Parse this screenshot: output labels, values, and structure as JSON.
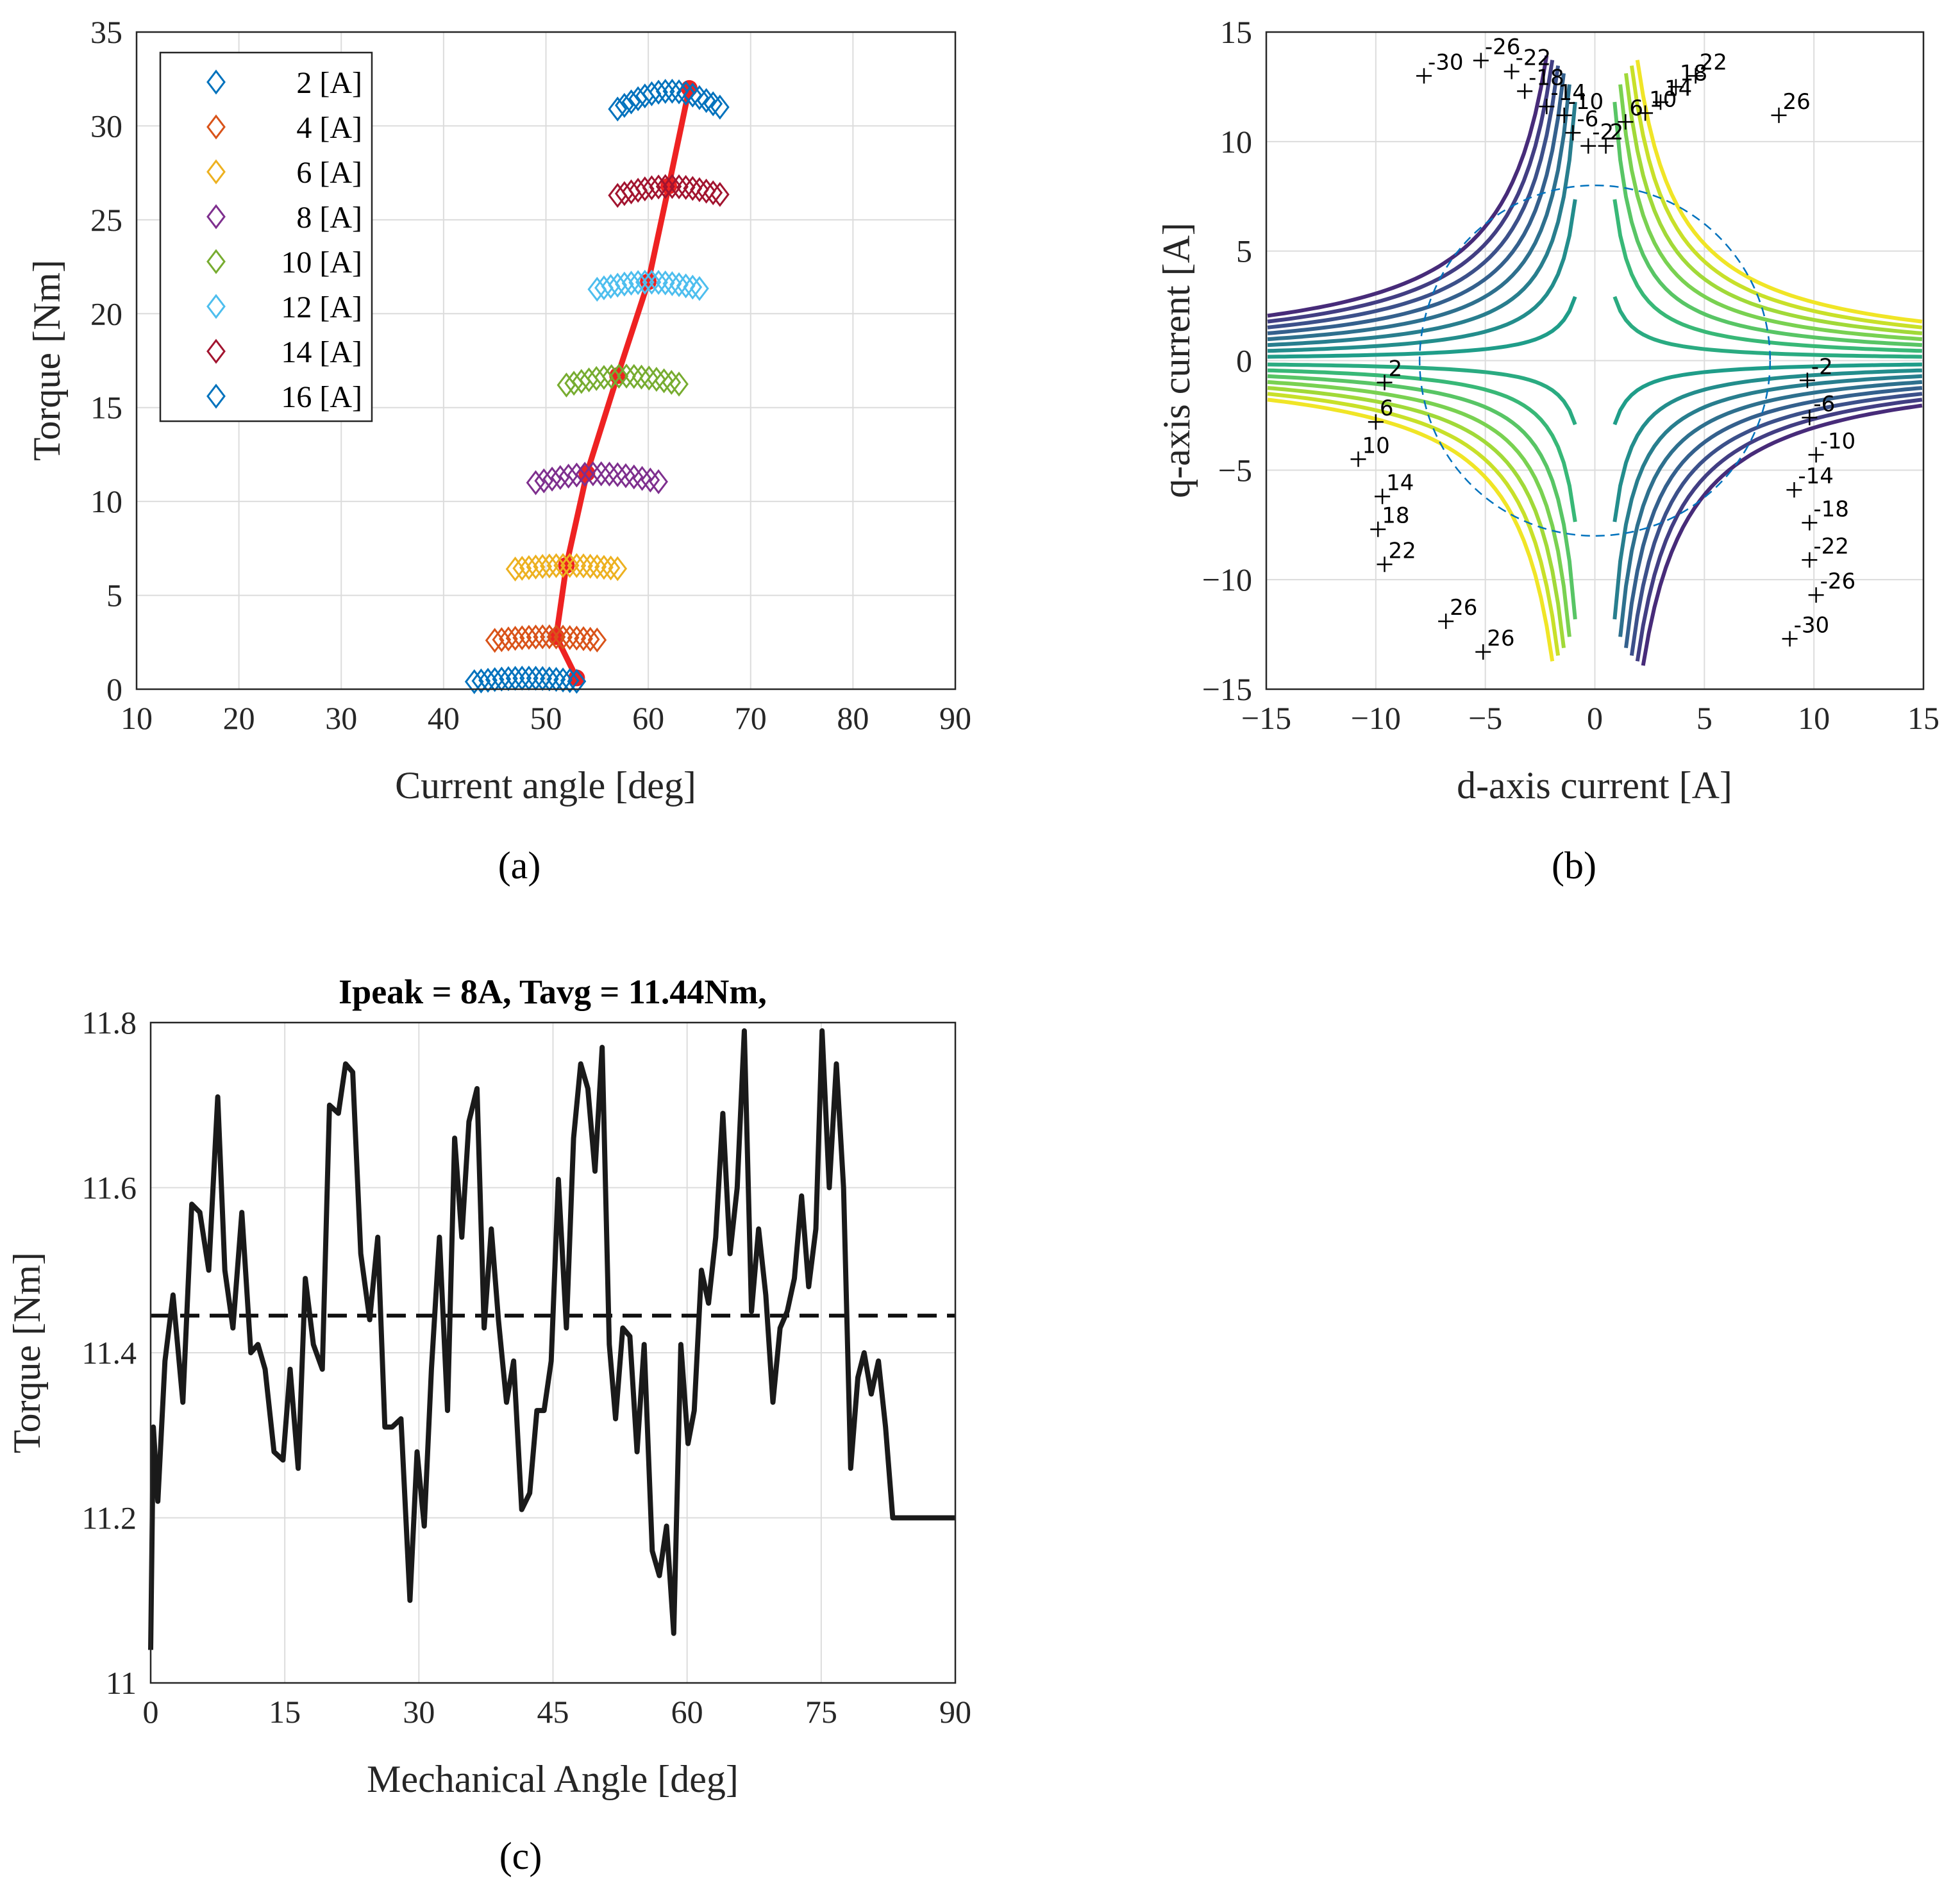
{
  "panels": [
    "(a)",
    "(b)",
    "(c)"
  ],
  "chart_data": [
    {
      "id": "a",
      "type": "scatter",
      "xlabel": "Current angle [deg]",
      "ylabel": "Torque [Nm]",
      "xlim": [
        10,
        90
      ],
      "ylim": [
        0,
        35
      ],
      "xticks": [
        10,
        20,
        30,
        40,
        50,
        60,
        70,
        80,
        90
      ],
      "yticks": [
        0,
        5,
        10,
        15,
        20,
        25,
        30,
        35
      ],
      "grid": true,
      "legend_position": "top-left",
      "marker": "diamond",
      "series": [
        {
          "name": "2 [A]",
          "color": "#0072BD",
          "angle_range": [
            43,
            53
          ],
          "torque_range": [
            0.4,
            0.6
          ]
        },
        {
          "name": "4 [A]",
          "color": "#D95319",
          "angle_range": [
            45,
            55
          ],
          "torque_range": [
            2.6,
            2.8
          ]
        },
        {
          "name": "6 [A]",
          "color": "#EDB120",
          "angle_range": [
            47,
            57
          ],
          "torque_range": [
            6.4,
            6.6
          ]
        },
        {
          "name": "8 [A]",
          "color": "#7E2F8E",
          "angle_range": [
            49,
            61
          ],
          "torque_range": [
            11.0,
            11.5
          ]
        },
        {
          "name": "10 [A]",
          "color": "#77AC30",
          "angle_range": [
            52,
            63
          ],
          "torque_range": [
            16.2,
            16.7
          ]
        },
        {
          "name": "12 [A]",
          "color": "#4DBEEE",
          "angle_range": [
            55,
            65
          ],
          "torque_range": [
            21.3,
            21.7
          ]
        },
        {
          "name": "14 [A]",
          "color": "#A2142F",
          "angle_range": [
            57,
            67
          ],
          "torque_range": [
            26.3,
            26.8
          ]
        },
        {
          "name": "16 [A]",
          "color": "#0072BD",
          "angle_range": [
            57,
            67
          ],
          "torque_range": [
            30.9,
            31.9
          ]
        }
      ],
      "mtpa_line": {
        "color": "#EE2222",
        "x": [
          53,
          51,
          52,
          54,
          57,
          60,
          62,
          64
        ],
        "y": [
          0.6,
          2.8,
          6.6,
          11.5,
          16.7,
          21.7,
          26.8,
          32.0
        ]
      }
    },
    {
      "id": "b",
      "type": "contour",
      "xlabel": "d-axis current [A]",
      "ylabel": "q-axis current [A]",
      "xlim": [
        -15,
        15
      ],
      "ylim": [
        -15,
        15
      ],
      "xticks": [
        -15,
        -10,
        -5,
        0,
        5,
        10,
        15
      ],
      "yticks": [
        -15,
        -10,
        -5,
        0,
        5,
        10,
        15
      ],
      "grid": true,
      "contour_levels": [
        -30,
        -26,
        -22,
        -18,
        -14,
        -10,
        -6,
        -2,
        2,
        6,
        10,
        14,
        18,
        22,
        26
      ],
      "circle_radius": 8,
      "labels_top": [
        {
          "text": "-30",
          "x": -7.8,
          "y": 13.0
        },
        {
          "text": "-26",
          "x": -5.2,
          "y": 13.7
        },
        {
          "text": "-22",
          "x": -3.8,
          "y": 13.2
        },
        {
          "text": "-18",
          "x": -3.2,
          "y": 12.3
        },
        {
          "text": "-14",
          "x": -2.2,
          "y": 11.6
        },
        {
          "text": "-10",
          "x": -1.4,
          "y": 11.2
        },
        {
          "text": "-6",
          "x": -1.0,
          "y": 10.4
        },
        {
          "text": "-2",
          "x": -0.3,
          "y": 9.8
        },
        {
          "text": "2",
          "x": 0.5,
          "y": 9.8
        },
        {
          "text": "6",
          "x": 1.4,
          "y": 10.9
        },
        {
          "text": "10",
          "x": 2.3,
          "y": 11.3
        },
        {
          "text": "14",
          "x": 3.0,
          "y": 11.8
        },
        {
          "text": "18",
          "x": 3.7,
          "y": 12.5
        },
        {
          "text": "22",
          "x": 4.6,
          "y": 13.0
        },
        {
          "text": "26",
          "x": 8.4,
          "y": 11.2
        }
      ],
      "labels_left": [
        {
          "text": "2",
          "x": -9.6,
          "y": -1.0
        },
        {
          "text": "6",
          "x": -10.0,
          "y": -2.8
        },
        {
          "text": "10",
          "x": -10.8,
          "y": -4.5
        },
        {
          "text": "14",
          "x": -9.7,
          "y": -6.2
        },
        {
          "text": "18",
          "x": -9.9,
          "y": -7.7
        },
        {
          "text": "22",
          "x": -9.6,
          "y": -9.3
        },
        {
          "text": "26",
          "x": -6.8,
          "y": -11.9
        },
        {
          "text": "26",
          "x": -5.1,
          "y": -13.3
        }
      ],
      "labels_right": [
        {
          "text": "-2",
          "x": 9.7,
          "y": -0.9
        },
        {
          "text": "-6",
          "x": 9.8,
          "y": -2.6
        },
        {
          "text": "-10",
          "x": 10.1,
          "y": -4.3
        },
        {
          "text": "-14",
          "x": 9.1,
          "y": -5.9
        },
        {
          "text": "-18",
          "x": 9.8,
          "y": -7.4
        },
        {
          "text": "-22",
          "x": 9.8,
          "y": -9.1
        },
        {
          "text": "-26",
          "x": 10.1,
          "y": -10.7
        },
        {
          "text": "-30",
          "x": 8.9,
          "y": -12.7
        }
      ]
    },
    {
      "id": "c",
      "type": "line",
      "title": "Ipeak = 8A,  Tavg = 11.44Nm,",
      "xlabel": "Mechanical Angle [deg]",
      "ylabel": "Torque [Nm]",
      "xlim": [
        0,
        90
      ],
      "ylim": [
        11.0,
        11.8
      ],
      "xticks": [
        0,
        15,
        30,
        45,
        60,
        75,
        90
      ],
      "yticks": [
        11.0,
        11.2,
        11.4,
        11.6,
        11.8
      ],
      "ytick_labels": [
        "11",
        "11.2",
        "11.4",
        "11.6",
        "11.8"
      ],
      "grid": true,
      "average": 11.445,
      "x": [
        0,
        0.3,
        0.8,
        1.6,
        2.5,
        3.6,
        4.6,
        5.5,
        6.5,
        7.5,
        8.3,
        9.2,
        10.2,
        11.2,
        12.0,
        12.8,
        13.8,
        14.8,
        15.6,
        16.5,
        17.3,
        18.2,
        19.2,
        20.0,
        21.0,
        21.8,
        22.6,
        23.5,
        24.5,
        25.4,
        26.2,
        27.0,
        28.0,
        29.0,
        29.8,
        30.6,
        31.4,
        32.3,
        33.2,
        34.0,
        34.8,
        35.6,
        36.5,
        37.3,
        38.1,
        38.9,
        39.8,
        40.6,
        41.5,
        42.4,
        43.2,
        44.0,
        44.8,
        45.6,
        46.5,
        47.3,
        48.1,
        48.9,
        49.7,
        50.5,
        51.3,
        52.0,
        52.8,
        53.6,
        54.4,
        55.2,
        56.1,
        56.9,
        57.7,
        58.5,
        59.3,
        60.1,
        60.8,
        61.6,
        62.4,
        63.2,
        64.0,
        64.8,
        65.6,
        66.4,
        67.2,
        68.0,
        68.8,
        69.6,
        70.4,
        71.2,
        72.0,
        72.8,
        73.6,
        74.4,
        75.1,
        75.9,
        76.7,
        77.5,
        78.3,
        79.1,
        79.8,
        80.6,
        81.4,
        82.2,
        83.0,
        83.7,
        84.5,
        85.2,
        86.0,
        86.8,
        87.5,
        88.3,
        89.1,
        90
      ],
      "y": [
        11.04,
        11.31,
        11.22,
        11.39,
        11.47,
        11.34,
        11.58,
        11.57,
        11.5,
        11.71,
        11.5,
        11.43,
        11.57,
        11.4,
        11.41,
        11.38,
        11.28,
        11.27,
        11.38,
        11.26,
        11.49,
        11.41,
        11.38,
        11.7,
        11.69,
        11.75,
        11.74,
        11.52,
        11.44,
        11.54,
        11.31,
        11.31,
        11.32,
        11.1,
        11.28,
        11.19,
        11.38,
        11.54,
        11.33,
        11.66,
        11.54,
        11.68,
        11.72,
        11.43,
        11.55,
        11.44,
        11.34,
        11.39,
        11.21,
        11.23,
        11.33,
        11.33,
        11.39,
        11.61,
        11.43,
        11.66,
        11.75,
        11.72,
        11.62,
        11.77,
        11.41,
        11.32,
        11.43,
        11.42,
        11.28,
        11.41,
        11.16,
        11.13,
        11.19,
        11.06,
        11.41,
        11.29,
        11.33,
        11.5,
        11.46,
        11.54,
        11.69,
        11.52,
        11.6,
        11.79,
        11.45,
        11.55,
        11.47,
        11.34,
        11.43,
        11.45,
        11.49,
        11.59,
        11.48,
        11.55,
        11.79,
        11.6,
        11.75,
        11.6,
        11.26,
        11.37,
        11.4,
        11.35,
        11.39,
        11.31,
        11.2,
        11.2,
        11.2,
        11.2,
        11.2,
        11.2,
        11.2,
        11.2,
        11.2,
        11.2
      ]
    }
  ]
}
